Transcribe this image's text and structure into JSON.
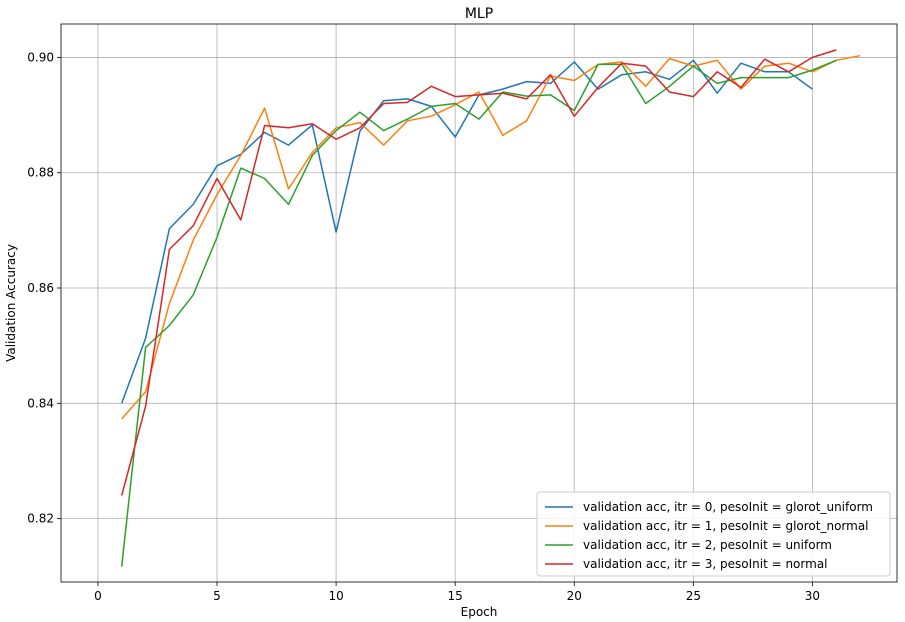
{
  "chart_data": {
    "type": "line",
    "title": "MLP",
    "xlabel": "Epoch",
    "ylabel": "Validation Accuracy",
    "xlim": [
      -1.55,
      33.55
    ],
    "ylim": [
      0.809,
      0.9058
    ],
    "xticks": [
      0,
      5,
      10,
      15,
      20,
      25,
      30
    ],
    "yticks": [
      0.82,
      0.84,
      0.86,
      0.88,
      0.9
    ],
    "ytick_labels": [
      "0.82",
      "0.84",
      "0.86",
      "0.88",
      "0.90"
    ],
    "grid": true,
    "legend_position": "bottom-right",
    "series": [
      {
        "name": "validation acc, itr = 0, pesoInit = glorot_uniform",
        "color": "#1f77b4",
        "x": [
          1,
          2,
          3,
          4,
          5,
          6,
          7,
          8,
          9,
          10,
          11,
          12,
          13,
          14,
          15,
          16,
          17,
          18,
          19,
          20,
          21,
          22,
          23,
          24,
          25,
          26,
          27,
          28,
          29,
          30
        ],
        "y": [
          0.84,
          0.8513,
          0.8703,
          0.8745,
          0.8812,
          0.8832,
          0.887,
          0.8848,
          0.8883,
          0.8697,
          0.8872,
          0.8925,
          0.8928,
          0.8915,
          0.8862,
          0.8935,
          0.8945,
          0.8958,
          0.8955,
          0.8992,
          0.8945,
          0.897,
          0.8975,
          0.8962,
          0.8995,
          0.8938,
          0.899,
          0.8975,
          0.8975,
          0.8945
        ]
      },
      {
        "name": "validation acc, itr = 1, pesoInit = glorot_normal",
        "color": "#ff7f0e",
        "x": [
          1,
          2,
          3,
          4,
          5,
          6,
          7,
          8,
          9,
          10,
          11,
          12,
          13,
          14,
          15,
          16,
          17,
          18,
          19,
          20,
          21,
          22,
          23,
          24,
          25,
          26,
          27,
          28,
          29,
          30,
          31,
          32
        ],
        "y": [
          0.8373,
          0.842,
          0.8573,
          0.8683,
          0.8762,
          0.883,
          0.8912,
          0.8772,
          0.8835,
          0.8878,
          0.8887,
          0.8848,
          0.889,
          0.8898,
          0.8918,
          0.894,
          0.8865,
          0.889,
          0.8968,
          0.896,
          0.8988,
          0.8992,
          0.895,
          0.8998,
          0.8985,
          0.8995,
          0.8945,
          0.8985,
          0.899,
          0.8975,
          0.8995,
          0.9003
        ]
      },
      {
        "name": "validation acc, itr = 2, pesoInit = uniform",
        "color": "#2ca02c",
        "x": [
          1,
          2,
          3,
          4,
          5,
          6,
          7,
          8,
          9,
          10,
          11,
          12,
          13,
          14,
          15,
          16,
          17,
          18,
          19,
          20,
          21,
          22,
          23,
          24,
          25,
          26,
          27,
          28,
          29,
          30,
          31
        ],
        "y": [
          0.8117,
          0.8497,
          0.8535,
          0.8588,
          0.8688,
          0.8808,
          0.879,
          0.8745,
          0.883,
          0.8873,
          0.8905,
          0.8873,
          0.8893,
          0.8915,
          0.892,
          0.8893,
          0.894,
          0.8933,
          0.8935,
          0.8908,
          0.8988,
          0.8988,
          0.892,
          0.895,
          0.8985,
          0.8955,
          0.8965,
          0.8965,
          0.8965,
          0.8978,
          0.8995
        ]
      },
      {
        "name": "validation acc, itr = 3, pesoInit = normal",
        "color": "#d62728",
        "x": [
          1,
          2,
          3,
          4,
          5,
          6,
          7,
          8,
          9,
          10,
          11,
          12,
          13,
          14,
          15,
          16,
          17,
          18,
          19,
          20,
          21,
          22,
          23,
          24,
          25,
          26,
          27,
          28,
          29,
          30,
          31
        ],
        "y": [
          0.824,
          0.8395,
          0.8667,
          0.8708,
          0.879,
          0.8718,
          0.8882,
          0.8878,
          0.8885,
          0.8858,
          0.8878,
          0.892,
          0.8922,
          0.895,
          0.8932,
          0.8935,
          0.8938,
          0.8928,
          0.897,
          0.8898,
          0.8948,
          0.899,
          0.8985,
          0.894,
          0.8932,
          0.8975,
          0.8948,
          0.8997,
          0.8975,
          0.9,
          0.9013
        ]
      }
    ]
  }
}
